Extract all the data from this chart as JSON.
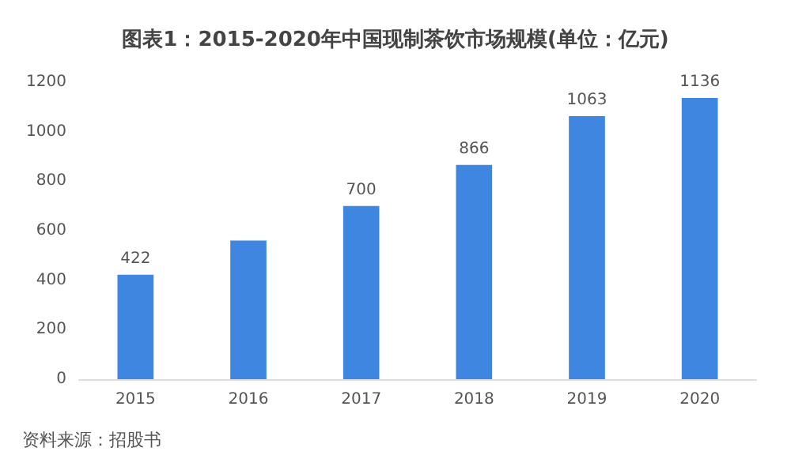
{
  "chart_data": {
    "type": "bar",
    "title": "图表1：2015-2020年中国现制茶饮市场规模(单位：亿元)",
    "categories": [
      "2015",
      "2016",
      "2017",
      "2018",
      "2019",
      "2020"
    ],
    "values": [
      422,
      560,
      700,
      866,
      1063,
      1136
    ],
    "value_labels": [
      "422",
      null,
      "700",
      "866",
      "1063",
      "1136"
    ],
    "color": "#3f86e0",
    "ylim": [
      0,
      1200
    ],
    "yticks": [
      0,
      200,
      400,
      600,
      800,
      1000,
      1200
    ],
    "grid": false,
    "annotations": [
      "资料来源：招股书"
    ]
  }
}
